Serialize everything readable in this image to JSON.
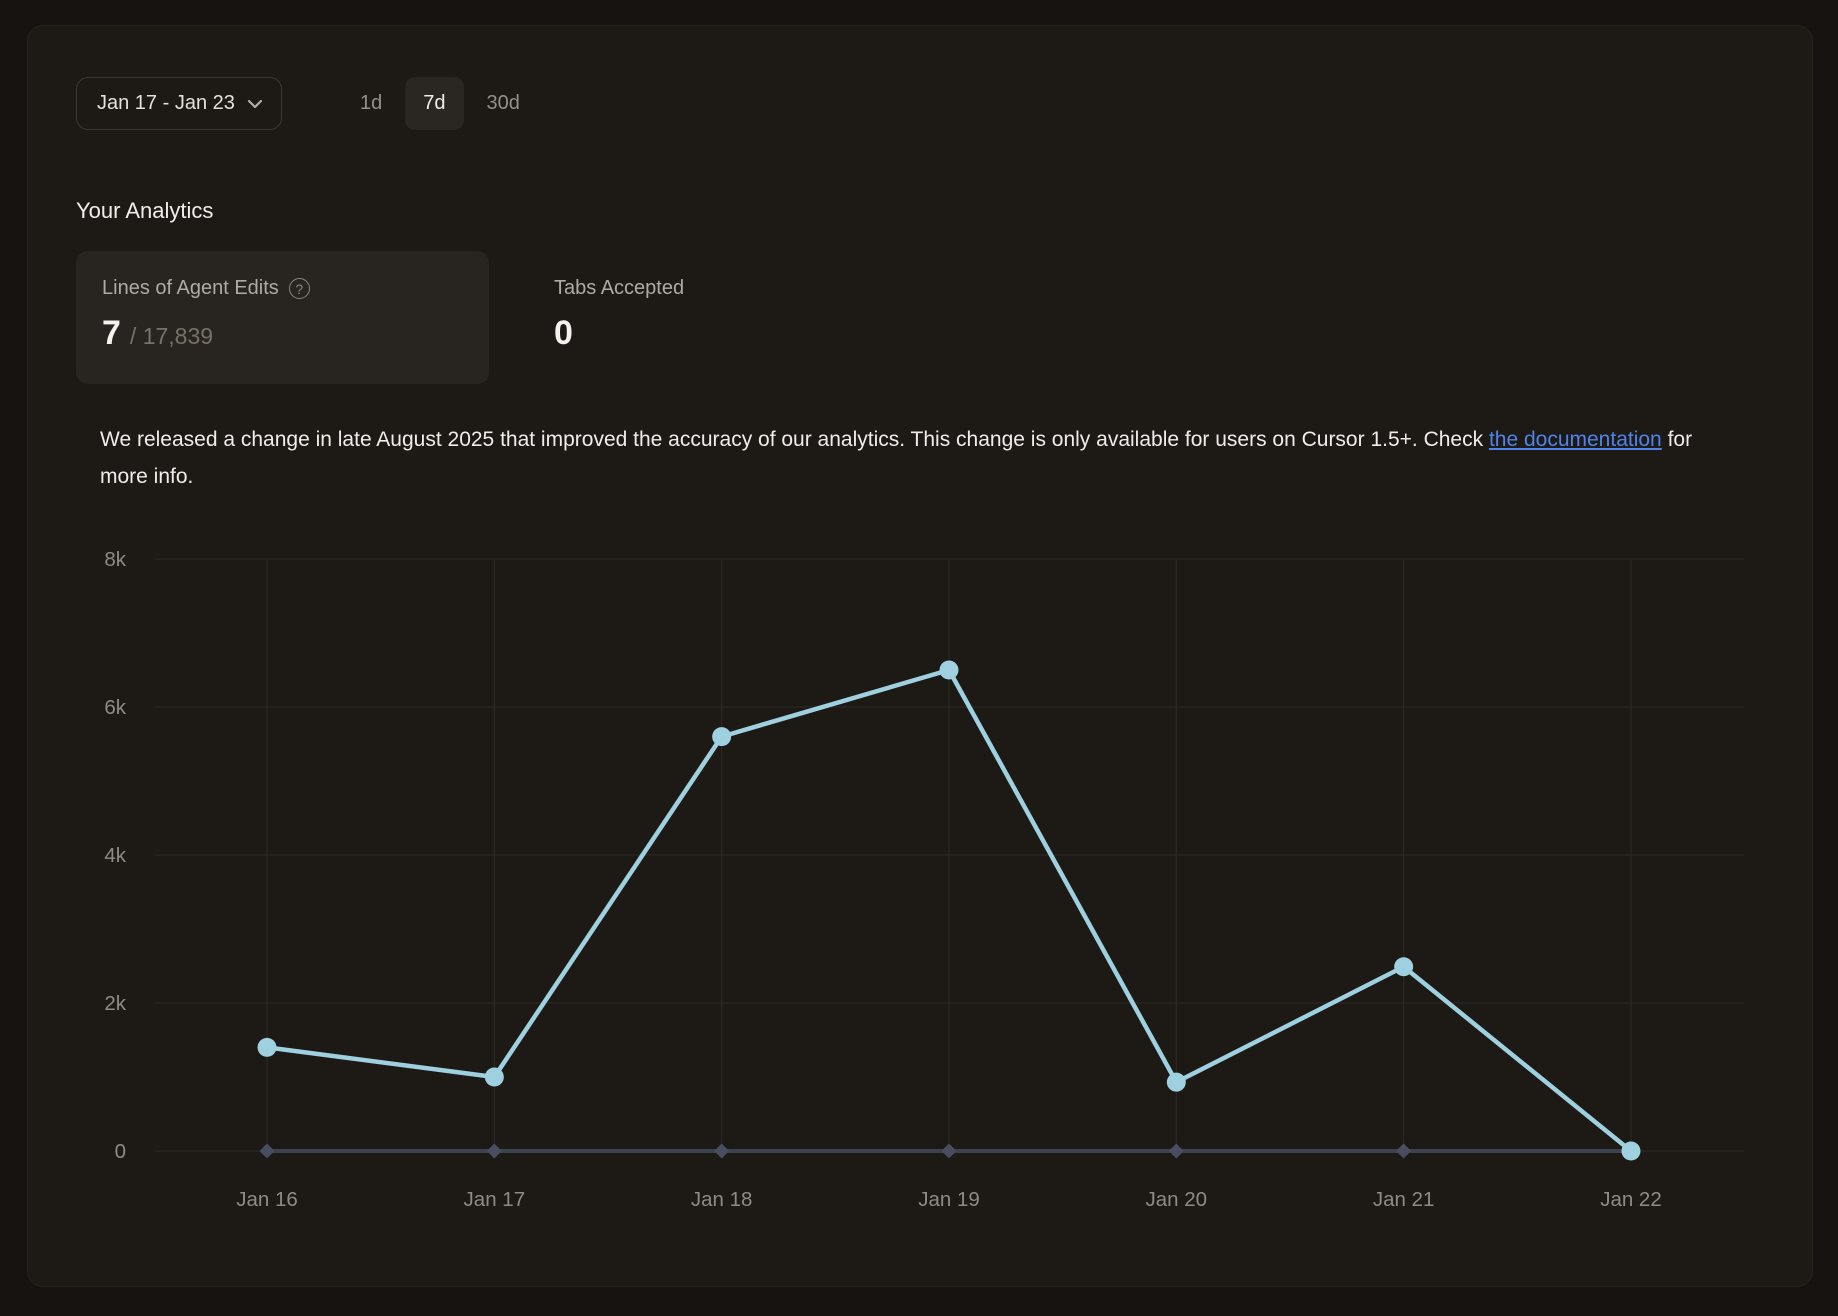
{
  "toolbar": {
    "date_range": {
      "label": "Jan 17 - Jan 23"
    },
    "range_options": [
      {
        "label": "1d",
        "selected": false
      },
      {
        "label": "7d",
        "selected": true
      },
      {
        "label": "30d",
        "selected": false
      }
    ]
  },
  "analytics": {
    "title": "Your Analytics",
    "cards": [
      {
        "label": "Lines of Agent Edits",
        "help_icon": "?",
        "value": "7",
        "total": "/ 17,839",
        "selected": true
      },
      {
        "label": "Tabs Accepted",
        "value": "0",
        "selected": false
      }
    ]
  },
  "notice": {
    "text_before_link": "We released a change in late August 2025 that improved the accuracy of our analytics. This change is only available for users on Cursor 1.5+. Check ",
    "link_text": "the documentation",
    "text_after_link": " for more info."
  },
  "chart_data": {
    "type": "line",
    "x": [
      "Jan 16",
      "Jan 17",
      "Jan 18",
      "Jan 19",
      "Jan 20",
      "Jan 21",
      "Jan 22"
    ],
    "series": [
      {
        "name": "Lines of Agent Edits",
        "values": [
          1400,
          1000,
          5600,
          6500,
          930,
          2490,
          0
        ],
        "color": "#9fd0e0",
        "marker": "circle"
      },
      {
        "name": "Tabs Accepted",
        "values": [
          0,
          0,
          0,
          0,
          0,
          0,
          0
        ],
        "color": "#3b4351",
        "marker": "diamond",
        "marker_color": "#474e5f"
      }
    ],
    "yticks": [
      {
        "value": 0,
        "label": "0"
      },
      {
        "value": 2000,
        "label": "2k"
      },
      {
        "value": 4000,
        "label": "4k"
      },
      {
        "value": 6000,
        "label": "6k"
      },
      {
        "value": 8000,
        "label": "8k"
      }
    ],
    "ylim": [
      0,
      8000
    ],
    "xlabel": "",
    "ylabel": "",
    "grid": true,
    "legend": "none",
    "grid_color": "#2b2824",
    "tick_label_color": "#8e8b86"
  }
}
